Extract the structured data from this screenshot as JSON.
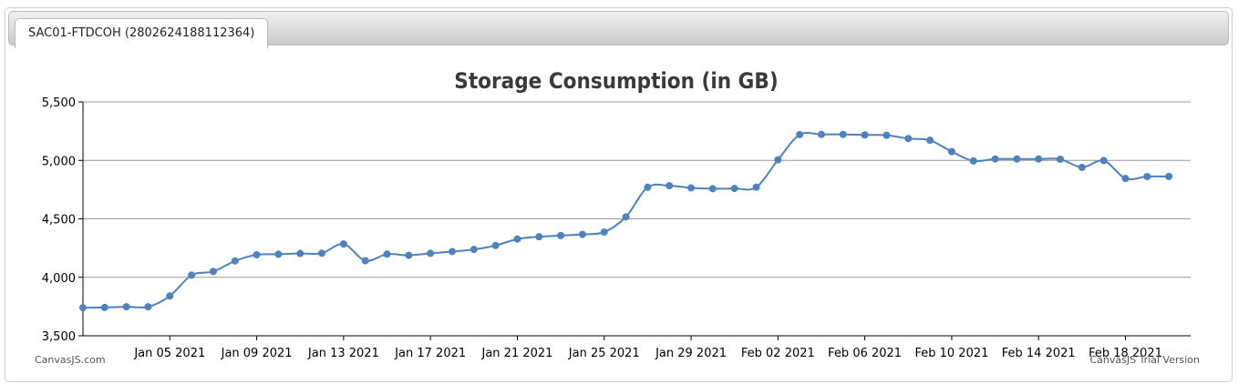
{
  "tab": {
    "label": "SAC01-FTDCOH (2802624188112364)"
  },
  "credits": {
    "left": "CanvasJS.com",
    "right": "CanvasJS Trial Version"
  },
  "colors": {
    "line": "#4f81bc",
    "grid": "#999999",
    "title": "#3a3a3a"
  },
  "chart_data": {
    "type": "line",
    "title": "Storage Consumption (in GB)",
    "xlabel": "",
    "ylabel": "",
    "ylim": [
      3500,
      5500
    ],
    "yticks": [
      3500,
      4000,
      4500,
      5000,
      5500
    ],
    "ytick_labels": [
      "3,500",
      "4,000",
      "4,500",
      "5,000",
      "5,500"
    ],
    "xlim": [
      "2021-01-01",
      "2021-02-21"
    ],
    "xticks": [
      "2021-01-05",
      "2021-01-09",
      "2021-01-13",
      "2021-01-17",
      "2021-01-21",
      "2021-01-25",
      "2021-01-29",
      "2021-02-02",
      "2021-02-06",
      "2021-02-10",
      "2021-02-14",
      "2021-02-18"
    ],
    "xtick_labels": [
      "Jan 05 2021",
      "Jan 09 2021",
      "Jan 13 2021",
      "Jan 17 2021",
      "Jan 21 2021",
      "Jan 25 2021",
      "Jan 29 2021",
      "Feb 02 2021",
      "Feb 06 2021",
      "Feb 10 2021",
      "Feb 14 2021",
      "Feb 18 2021"
    ],
    "grid": true,
    "series": [
      {
        "x": [
          "2021-01-01",
          "2021-01-02",
          "2021-01-03",
          "2021-01-04",
          "2021-01-05",
          "2021-01-06",
          "2021-01-07",
          "2021-01-08",
          "2021-01-09",
          "2021-01-10",
          "2021-01-11",
          "2021-01-12",
          "2021-01-13",
          "2021-01-14",
          "2021-01-15",
          "2021-01-16",
          "2021-01-17",
          "2021-01-18",
          "2021-01-19",
          "2021-01-20",
          "2021-01-21",
          "2021-01-22",
          "2021-01-23",
          "2021-01-24",
          "2021-01-25",
          "2021-01-26",
          "2021-01-27",
          "2021-01-28",
          "2021-01-29",
          "2021-01-30",
          "2021-01-31",
          "2021-02-01",
          "2021-02-02",
          "2021-02-03",
          "2021-02-04",
          "2021-02-05",
          "2021-02-06",
          "2021-02-07",
          "2021-02-08",
          "2021-02-09",
          "2021-02-10",
          "2021-02-11",
          "2021-02-12",
          "2021-02-13",
          "2021-02-14",
          "2021-02-15",
          "2021-02-16",
          "2021-02-17",
          "2021-02-18",
          "2021-02-19",
          "2021-02-20"
        ],
        "values": [
          3740,
          3742,
          3748,
          3748,
          3840,
          4018,
          4050,
          4140,
          4193,
          4197,
          4204,
          4206,
          4285,
          4142,
          4198,
          4188,
          4205,
          4220,
          4238,
          4272,
          4327,
          4347,
          4357,
          4367,
          4387,
          4517,
          4770,
          4783,
          4765,
          4758,
          4760,
          4770,
          5005,
          5220,
          5222,
          5222,
          5218,
          5215,
          5187,
          5172,
          5075,
          4995,
          5012,
          5012,
          5012,
          5010,
          4940,
          4998,
          4845,
          4862,
          4862
        ]
      }
    ]
  }
}
